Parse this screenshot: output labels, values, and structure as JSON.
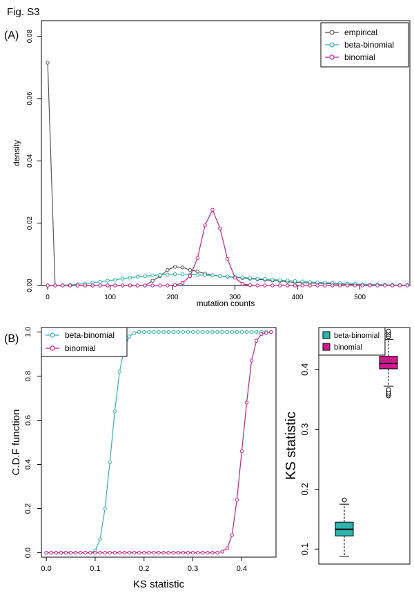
{
  "figure_label": "Fig. S3",
  "panel_a_label": "(A)",
  "panel_b_label": "(B)",
  "colors": {
    "empirical": "#555555",
    "beta_binomial": "#2bb5ad",
    "binomial": "#d01a8c"
  },
  "chart_data": [
    {
      "type": "line",
      "xlabel": "mutation counts",
      "ylabel": "density",
      "xlim": [
        -10,
        580
      ],
      "ylim": [
        0,
        0.085
      ],
      "x_ticks": [
        0,
        100,
        200,
        300,
        400,
        500
      ],
      "y_ticks": [
        0.0,
        0.02,
        0.04,
        0.06,
        0.08
      ],
      "y_tick_labels": [
        "0.00",
        "0.02",
        "0.04",
        "0.06",
        "0.08"
      ],
      "legend_position": "top-right",
      "x": [
        0,
        12,
        24,
        36,
        48,
        60,
        72,
        84,
        96,
        108,
        120,
        132,
        144,
        156,
        168,
        180,
        192,
        204,
        216,
        228,
        240,
        252,
        264,
        276,
        288,
        300,
        312,
        324,
        336,
        348,
        360,
        372,
        384,
        396,
        408,
        420,
        432,
        444,
        456,
        468,
        480,
        492,
        504,
        516,
        528,
        540,
        552,
        564,
        576
      ],
      "series": [
        {
          "name": "empirical",
          "values": [
            0.0715,
            0,
            0,
            0,
            0,
            0,
            0,
            0,
            0,
            0,
            0,
            0,
            0,
            0,
            0.0015,
            0.003,
            0.005,
            0.006,
            0.0058,
            0.005,
            0.0045,
            0.0038,
            0.0033,
            0.003,
            0.0028,
            0.0026,
            0.0024,
            0.0022,
            0.002,
            0.0018,
            0.0016,
            0.0014,
            0.0012,
            0.001,
            0.0009,
            0.0008,
            0.0007,
            0.0006,
            0.0005,
            0.0004,
            0.0004,
            0.0003,
            0.0003,
            0.0002,
            0.0002,
            0.0002,
            0.0001,
            0.0001,
            0.0001
          ]
        },
        {
          "name": "beta-binomial",
          "values": [
            0,
            0,
            0.0001,
            0.0002,
            0.0004,
            0.0006,
            0.0009,
            0.0012,
            0.0015,
            0.0018,
            0.0022,
            0.0025,
            0.0028,
            0.003,
            0.0032,
            0.0034,
            0.0035,
            0.0036,
            0.0036,
            0.0035,
            0.0034,
            0.0033,
            0.0032,
            0.003,
            0.0029,
            0.0027,
            0.0026,
            0.0024,
            0.0022,
            0.0021,
            0.0019,
            0.0017,
            0.0016,
            0.0014,
            0.0013,
            0.0011,
            0.001,
            0.0009,
            0.0008,
            0.0007,
            0.0006,
            0.0005,
            0.0004,
            0.0003,
            0.0003,
            0.0002,
            0.0002,
            0.0001,
            0.0001
          ]
        },
        {
          "name": "binomial",
          "values": [
            0,
            0,
            0,
            0,
            0,
            0,
            0,
            0,
            0,
            0,
            0,
            0,
            0,
            0,
            0,
            0,
            0,
            0.0001,
            0.0008,
            0.003,
            0.0088,
            0.0193,
            0.0243,
            0.0183,
            0.0085,
            0.0025,
            0.0005,
            0.0001,
            0,
            0,
            0,
            0,
            0,
            0,
            0,
            0,
            0,
            0,
            0,
            0,
            0,
            0,
            0,
            0,
            0,
            0,
            0,
            0,
            0
          ]
        }
      ]
    },
    {
      "type": "line",
      "xlabel": "KS statistic",
      "ylabel": "C.D.F function",
      "xlim": [
        -0.01,
        0.47
      ],
      "ylim": [
        -0.02,
        1.02
      ],
      "x_ticks": [
        0.0,
        0.1,
        0.2,
        0.3,
        0.4
      ],
      "x_tick_labels": [
        "0.0",
        "0.1",
        "0.2",
        "0.3",
        "0.4"
      ],
      "y_ticks": [
        0.0,
        0.2,
        0.4,
        0.6,
        0.8,
        1.0
      ],
      "y_tick_labels": [
        "0.0",
        "0.2",
        "0.4",
        "0.6",
        "0.8",
        "1.0"
      ],
      "legend_position": "top-left",
      "x": [
        0.0,
        0.01,
        0.02,
        0.03,
        0.04,
        0.05,
        0.06,
        0.07,
        0.08,
        0.09,
        0.1,
        0.11,
        0.12,
        0.13,
        0.14,
        0.15,
        0.16,
        0.17,
        0.18,
        0.19,
        0.2,
        0.21,
        0.22,
        0.23,
        0.24,
        0.25,
        0.26,
        0.27,
        0.28,
        0.29,
        0.3,
        0.31,
        0.32,
        0.33,
        0.34,
        0.35,
        0.36,
        0.37,
        0.38,
        0.39,
        0.4,
        0.41,
        0.42,
        0.43,
        0.44,
        0.45,
        0.46
      ],
      "series": [
        {
          "name": "beta-binomial",
          "values": [
            0,
            0,
            0,
            0,
            0,
            0,
            0,
            0,
            0,
            0,
            0.01,
            0.06,
            0.2,
            0.41,
            0.64,
            0.82,
            0.93,
            0.98,
            0.995,
            1,
            1,
            1,
            1,
            1,
            1,
            1,
            1,
            1,
            1,
            1,
            1,
            1,
            1,
            1,
            1,
            1,
            1,
            1,
            1,
            1,
            1,
            1,
            1,
            1,
            1,
            1,
            1
          ]
        },
        {
          "name": "binomial",
          "values": [
            0,
            0,
            0,
            0,
            0,
            0,
            0,
            0,
            0,
            0,
            0,
            0,
            0,
            0,
            0,
            0,
            0,
            0,
            0,
            0,
            0,
            0,
            0,
            0,
            0,
            0,
            0,
            0,
            0,
            0,
            0,
            0,
            0,
            0,
            0,
            0,
            0.005,
            0.02,
            0.08,
            0.24,
            0.46,
            0.68,
            0.87,
            0.96,
            0.99,
            0.995,
            1
          ]
        }
      ]
    },
    {
      "type": "box",
      "ylabel": "KS statistic",
      "ylim": [
        0.075,
        0.47
      ],
      "y_ticks": [
        0.1,
        0.2,
        0.3,
        0.4
      ],
      "y_tick_labels": [
        "0.1",
        "0.2",
        "0.3",
        "0.4"
      ],
      "legend_position": "top-left",
      "boxes": [
        {
          "name": "beta-binomial",
          "whisker_low": 0.088,
          "q1": 0.122,
          "median": 0.133,
          "q3": 0.145,
          "whisker_high": 0.175,
          "outliers": [
            0.182
          ]
        },
        {
          "name": "binomial",
          "whisker_low": 0.372,
          "q1": 0.401,
          "median": 0.41,
          "q3": 0.422,
          "whisker_high": 0.45,
          "outliers": [
            0.356,
            0.359,
            0.362,
            0.366,
            0.455,
            0.458,
            0.461,
            0.464
          ]
        }
      ]
    }
  ]
}
